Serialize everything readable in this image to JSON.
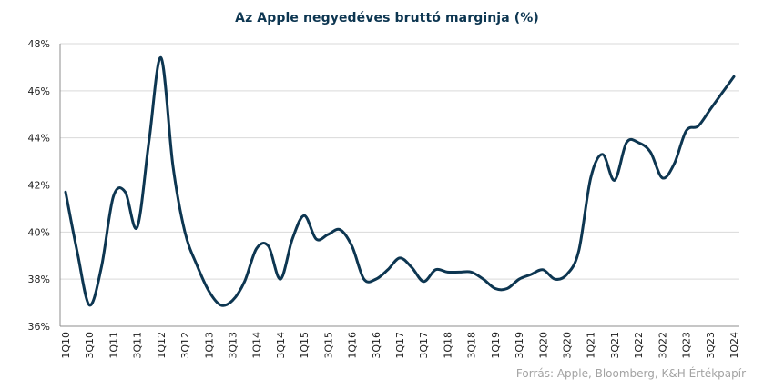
{
  "chart_data": {
    "type": "line",
    "title": "Az Apple negyedéves bruttó marginja (%)",
    "xlabel": "",
    "ylabel": "",
    "ylim": [
      36,
      48
    ],
    "y_ticks": [
      "36%",
      "38%",
      "40%",
      "42%",
      "44%",
      "46%",
      "48%"
    ],
    "y_tick_values": [
      36,
      38,
      40,
      42,
      44,
      46,
      48
    ],
    "x_tick_labels": [
      "1Q10",
      "3Q10",
      "1Q11",
      "3Q11",
      "1Q12",
      "3Q12",
      "1Q13",
      "3Q13",
      "1Q14",
      "3Q14",
      "1Q15",
      "3Q15",
      "1Q16",
      "3Q16",
      "1Q17",
      "3Q17",
      "1Q18",
      "3Q18",
      "1Q19",
      "3Q19",
      "1Q20",
      "3Q20",
      "1Q21",
      "3Q21",
      "1Q22",
      "3Q22",
      "1Q23",
      "3Q23",
      "1Q24"
    ],
    "grid": "horizontal",
    "line_color": "#0d3651",
    "categories": [
      "1Q10",
      "2Q10",
      "3Q10",
      "4Q10",
      "1Q11",
      "2Q11",
      "3Q11",
      "4Q11",
      "1Q12",
      "2Q12",
      "3Q12",
      "4Q12",
      "1Q13",
      "2Q13",
      "3Q13",
      "4Q13",
      "1Q14",
      "2Q14",
      "3Q14",
      "4Q14",
      "1Q15",
      "2Q15",
      "3Q15",
      "4Q15",
      "1Q16",
      "2Q16",
      "3Q16",
      "4Q16",
      "1Q17",
      "2Q17",
      "3Q17",
      "4Q17",
      "1Q18",
      "2Q18",
      "3Q18",
      "4Q18",
      "1Q19",
      "2Q19",
      "3Q19",
      "4Q19",
      "1Q20",
      "2Q20",
      "3Q20",
      "4Q20",
      "1Q21",
      "2Q21",
      "3Q21",
      "4Q21",
      "1Q22",
      "2Q22",
      "3Q22",
      "4Q22",
      "1Q23",
      "2Q23",
      "3Q23",
      "4Q23",
      "1Q24"
    ],
    "series": [
      {
        "values": [
          41.7,
          39.1,
          36.9,
          38.5,
          41.5,
          41.7,
          40.2,
          43.9,
          47.4,
          42.8,
          40.0,
          38.6,
          37.5,
          36.9,
          37.1,
          37.9,
          39.3,
          39.4,
          38.0,
          39.7,
          40.7,
          39.7,
          39.9,
          40.1,
          39.4,
          38.0,
          38.0,
          38.4,
          38.9,
          38.5,
          37.9,
          38.4,
          38.3,
          38.3,
          38.3,
          38.0,
          37.6,
          37.6,
          38.0,
          38.2,
          38.4,
          38.0,
          38.2,
          39.2,
          42.3,
          43.3,
          42.2,
          43.8,
          43.8,
          43.4,
          42.3,
          42.9,
          44.3,
          44.5,
          45.2,
          45.9,
          46.6
        ]
      }
    ]
  },
  "source": "Forrás: Apple, Bloomberg, K&H Értékpapír"
}
